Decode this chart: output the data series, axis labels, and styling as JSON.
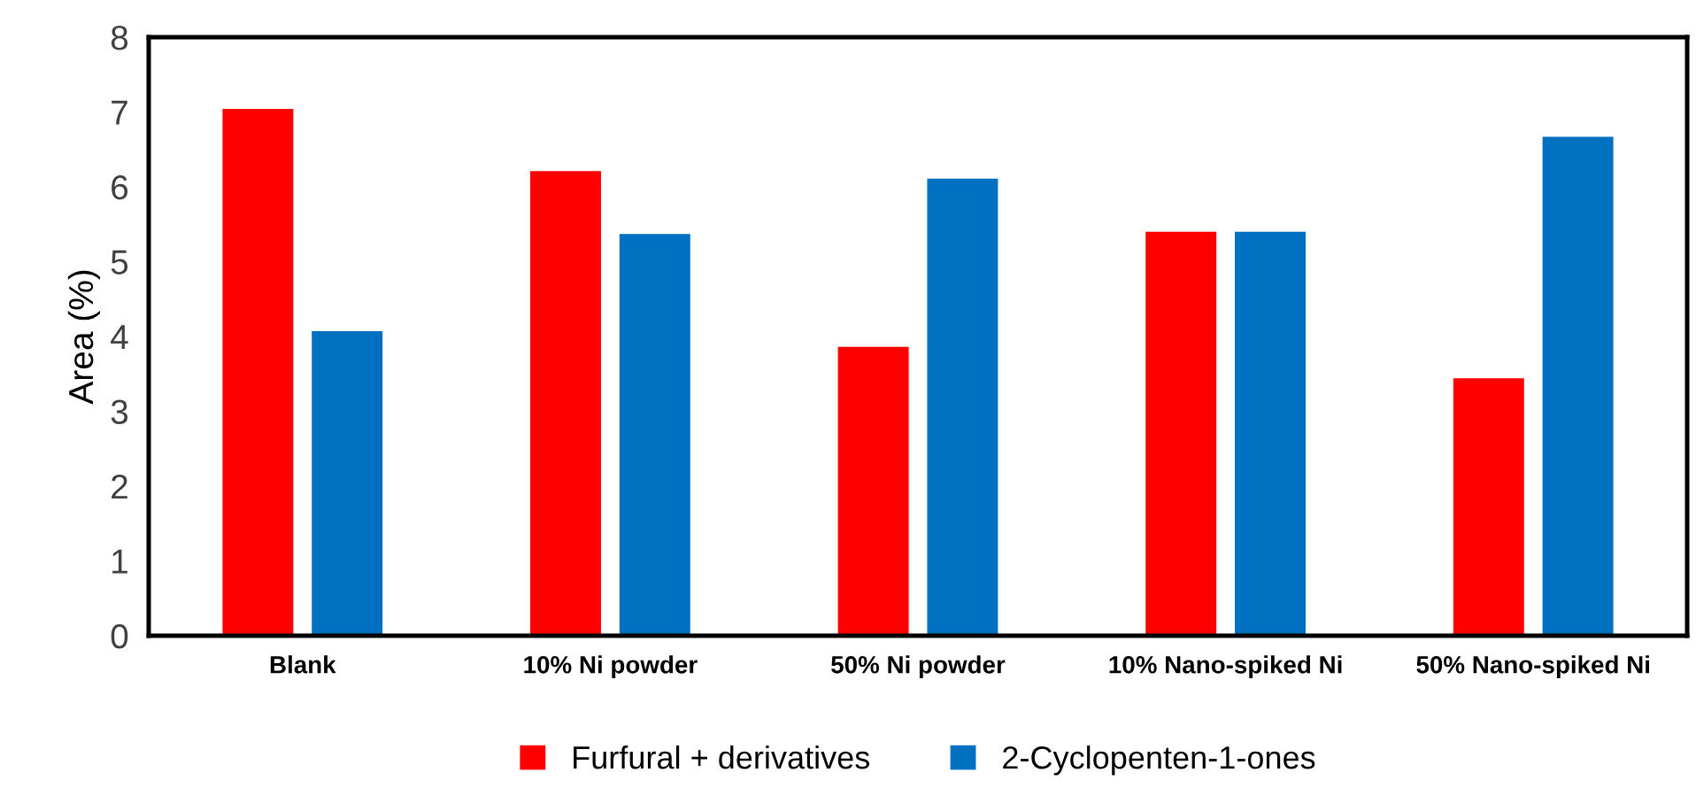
{
  "chart_data": {
    "type": "bar",
    "ylabel": "Area (%)",
    "categories": [
      "Blank",
      "10% Ni powder",
      "50% Ni powder",
      "10% Nano-spiked Ni",
      "50% Nano-spiked Ni"
    ],
    "series": [
      {
        "name": "Furfural + derivatives",
        "color": "#ff0000",
        "values": [
          7.04,
          6.21,
          3.86,
          5.4,
          3.44
        ]
      },
      {
        "name": "2-Cyclopenten-1-ones",
        "color": "#0070c0",
        "values": [
          4.07,
          5.37,
          6.11,
          5.4,
          6.67
        ]
      }
    ],
    "ylim": [
      0,
      8
    ],
    "yticks": [
      0,
      1,
      2,
      3,
      4,
      5,
      6,
      7,
      8
    ],
    "grid": false,
    "legend": "bottom"
  }
}
